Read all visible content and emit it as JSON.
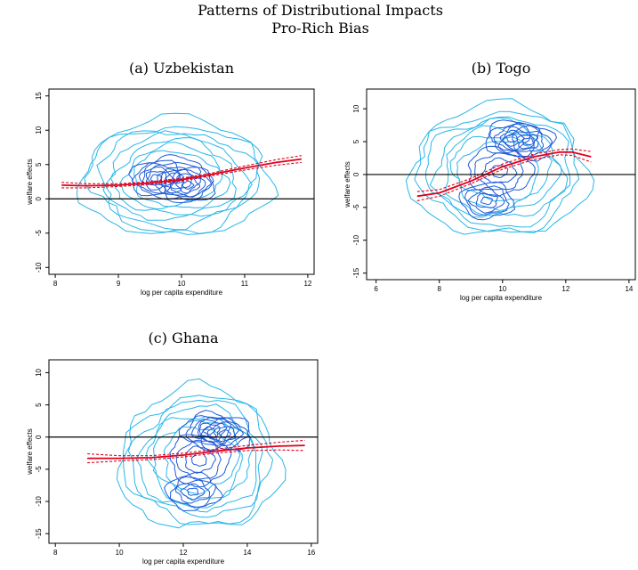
{
  "figure": {
    "title": "Patterns of Distributional Impacts",
    "subtitle": "Pro-Rich Bias"
  },
  "colors": {
    "contour_light": "#29b6e8",
    "contour_dark": "#1e5bd8",
    "fit_line": "#e0001b",
    "axis": "#000000"
  },
  "chart_data": [
    {
      "type": "line",
      "title": "(a) Uzbekistan",
      "xlabel": "log per capita expenditure",
      "ylabel": "welfare effects",
      "xlim": [
        7.9,
        12.1
      ],
      "ylim": [
        -11,
        16
      ],
      "xticks": [
        8,
        9,
        10,
        11,
        12
      ],
      "yticks": [
        -10,
        -5,
        0,
        5,
        10,
        15
      ],
      "zero_line": true,
      "contours": {
        "center_x": 9.9,
        "center_y": 3,
        "spread_x": 1.5,
        "spread_y": 8.5,
        "dense_spots": [
          [
            9.6,
            3
          ],
          [
            10.1,
            2
          ]
        ]
      },
      "series": [
        {
          "style": "solid",
          "x": [
            8.1,
            8.5,
            9.0,
            9.5,
            10.0,
            10.5,
            11.0,
            11.5,
            11.9
          ],
          "y": [
            2.0,
            1.9,
            2.0,
            2.3,
            2.8,
            3.6,
            4.5,
            5.3,
            5.8
          ]
        },
        {
          "style": "dashed",
          "x": [
            8.1,
            8.5,
            9.0,
            9.5,
            10.0,
            10.5,
            11.0,
            11.5,
            11.9
          ],
          "y": [
            2.4,
            2.2,
            2.2,
            2.5,
            3.0,
            3.8,
            4.8,
            5.7,
            6.3
          ]
        },
        {
          "style": "dashed",
          "x": [
            8.1,
            8.5,
            9.0,
            9.5,
            10.0,
            10.5,
            11.0,
            11.5,
            11.9
          ],
          "y": [
            1.6,
            1.6,
            1.8,
            2.1,
            2.6,
            3.4,
            4.2,
            4.9,
            5.3
          ]
        }
      ]
    },
    {
      "type": "line",
      "title": "(b) Togo",
      "xlabel": "log per capita expenditure",
      "ylabel": "welfare effects",
      "xlim": [
        5.7,
        14.2
      ],
      "ylim": [
        -16,
        13
      ],
      "xticks": [
        6,
        8,
        10,
        12,
        14
      ],
      "yticks": [
        -15,
        -10,
        -5,
        0,
        5,
        10
      ],
      "zero_line": true,
      "contours": {
        "center_x": 9.9,
        "center_y": 0.5,
        "spread_x": 2.8,
        "spread_y": 10,
        "dense_spots": [
          [
            10.3,
            5.5
          ],
          [
            9.5,
            -4
          ],
          [
            10.8,
            5
          ]
        ]
      },
      "series": [
        {
          "style": "solid",
          "x": [
            7.3,
            8.0,
            9.0,
            10.0,
            11.0,
            11.8,
            12.2,
            12.8
          ],
          "y": [
            -3.3,
            -2.8,
            -1.0,
            1.2,
            2.7,
            3.4,
            3.4,
            2.7
          ]
        },
        {
          "style": "dashed",
          "x": [
            7.3,
            8.0,
            9.0,
            10.0,
            11.0,
            11.8,
            12.2,
            12.8
          ],
          "y": [
            -2.6,
            -2.3,
            -0.6,
            1.6,
            3.1,
            3.8,
            3.9,
            3.5
          ]
        },
        {
          "style": "dashed",
          "x": [
            7.3,
            8.0,
            9.0,
            10.0,
            11.0,
            11.8,
            12.2,
            12.8
          ],
          "y": [
            -4.0,
            -3.3,
            -1.4,
            0.8,
            2.3,
            3.0,
            2.9,
            1.9
          ]
        }
      ]
    },
    {
      "type": "line",
      "title": "(c) Ghana",
      "xlabel": "log per capita expenditure",
      "ylabel": "welfare effects",
      "xlim": [
        7.8,
        16.2
      ],
      "ylim": [
        -16.5,
        12
      ],
      "xticks": [
        8,
        10,
        12,
        14,
        16
      ],
      "yticks": [
        -15,
        -10,
        -5,
        0,
        5,
        10
      ],
      "zero_line": true,
      "contours": {
        "center_x": 12.5,
        "center_y": -3.5,
        "spread_x": 2.5,
        "spread_y": 11,
        "dense_spots": [
          [
            12.8,
            1
          ],
          [
            12.3,
            -8.5
          ],
          [
            13.3,
            0.5
          ]
        ]
      },
      "series": [
        {
          "style": "solid",
          "x": [
            9.0,
            10.0,
            11.0,
            12.0,
            13.0,
            14.0,
            15.0,
            15.8
          ],
          "y": [
            -3.3,
            -3.3,
            -3.2,
            -2.8,
            -2.2,
            -1.7,
            -1.4,
            -1.3
          ]
        },
        {
          "style": "dashed",
          "x": [
            9.0,
            10.0,
            11.0,
            12.0,
            13.0,
            14.0,
            15.0,
            15.8
          ],
          "y": [
            -2.6,
            -2.9,
            -2.9,
            -2.5,
            -1.9,
            -1.3,
            -0.8,
            -0.5
          ]
        },
        {
          "style": "dashed",
          "x": [
            9.0,
            10.0,
            11.0,
            12.0,
            13.0,
            14.0,
            15.0,
            15.8
          ],
          "y": [
            -4.0,
            -3.7,
            -3.5,
            -3.1,
            -2.5,
            -2.1,
            -2.0,
            -2.1
          ]
        }
      ]
    }
  ]
}
